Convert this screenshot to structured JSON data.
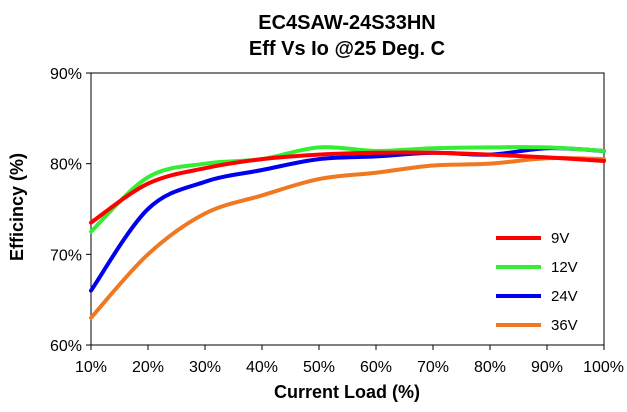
{
  "chart_data": {
    "type": "line",
    "title": "EC4SAW-24S33HN",
    "subtitle": "Eff Vs Io @25 Deg. C",
    "xlabel": "Current Load (%)",
    "ylabel": "Efficincy (%)",
    "x": [
      10,
      20,
      30,
      40,
      50,
      60,
      70,
      80,
      90,
      100
    ],
    "x_tick_labels": [
      "10%",
      "20%",
      "30%",
      "40%",
      "50%",
      "60%",
      "70%",
      "80%",
      "90%",
      "100%"
    ],
    "xlim": [
      10,
      100
    ],
    "ylim": [
      60,
      90
    ],
    "y_ticks": [
      60,
      70,
      80,
      90
    ],
    "y_tick_labels": [
      "60%",
      "70%",
      "80%",
      "90%"
    ],
    "grid": false,
    "legend_position": "bottom-right",
    "series": [
      {
        "name": "9V",
        "color": "#ff0000",
        "values": [
          73.5,
          77.8,
          79.5,
          80.5,
          81.0,
          81.2,
          81.2,
          81.0,
          80.7,
          80.3
        ]
      },
      {
        "name": "12V",
        "color": "#33ee33",
        "values": [
          72.5,
          78.5,
          80.0,
          80.5,
          81.8,
          81.4,
          81.7,
          81.8,
          81.8,
          81.4
        ]
      },
      {
        "name": "24V",
        "color": "#0000ee",
        "values": [
          66.0,
          75.0,
          78.0,
          79.3,
          80.5,
          80.8,
          81.2,
          81.0,
          81.7,
          81.4
        ]
      },
      {
        "name": "36V",
        "color": "#f07820",
        "values": [
          63.0,
          70.0,
          74.5,
          76.5,
          78.3,
          79.0,
          79.8,
          80.0,
          80.6,
          80.5
        ]
      }
    ]
  }
}
